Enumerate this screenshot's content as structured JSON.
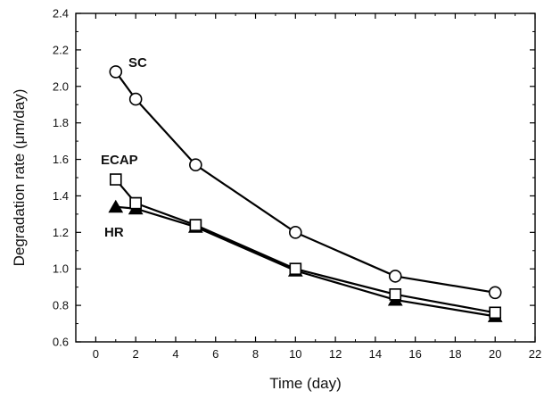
{
  "chart_data": {
    "type": "scatter",
    "xlabel": "Time (day)",
    "ylabel": "Degradation rate (μm/day)",
    "xlim": [
      -1,
      22
    ],
    "ylim": [
      0.6,
      2.4
    ],
    "xticks": [
      0,
      2,
      4,
      6,
      8,
      10,
      12,
      14,
      16,
      18,
      20,
      22
    ],
    "yticks": [
      0.6,
      0.8,
      1.0,
      1.2,
      1.4,
      1.6,
      1.8,
      2.0,
      2.2,
      2.4
    ],
    "ytick_labels": [
      "0.6",
      "0.8",
      "1.0",
      "1.2",
      "1.4",
      "1.6",
      "1.8",
      "2.0",
      "2.2",
      "2.4"
    ],
    "grid": false,
    "legend": "none",
    "series": [
      {
        "name": "SC",
        "marker": "circle-open",
        "color": "#000000",
        "x": [
          1,
          2,
          5,
          10,
          15,
          20
        ],
        "y": [
          2.08,
          1.93,
          1.57,
          1.2,
          0.96,
          0.87
        ]
      },
      {
        "name": "ECAP",
        "marker": "square-open",
        "color": "#000000",
        "x": [
          1,
          2,
          5,
          10,
          15,
          20
        ],
        "y": [
          1.49,
          1.36,
          1.24,
          1.0,
          0.86,
          0.76
        ]
      },
      {
        "name": "HR",
        "marker": "triangle-filled",
        "color": "#000000",
        "x": [
          1,
          2,
          5,
          10,
          15,
          20
        ],
        "y": [
          1.34,
          1.33,
          1.23,
          0.99,
          0.83,
          0.74
        ]
      }
    ]
  }
}
